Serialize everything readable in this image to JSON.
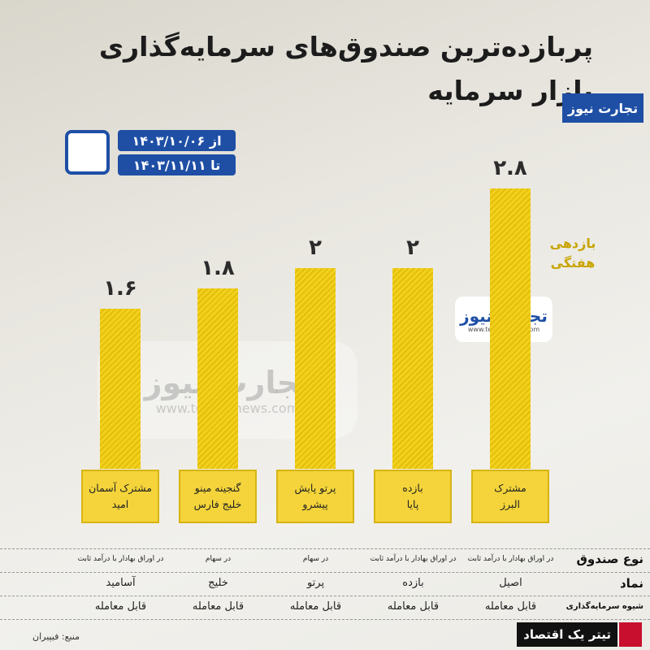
{
  "chart_data": {
    "type": "bar",
    "title": "پربازده‌ترین صندوق‌های سرمایه‌گذاری",
    "subtitle": "بازار سرمایه",
    "brand": "تجارت نیوز",
    "date_from": "از ۱۴۰۳/۱۰/۰۶",
    "date_to": "تا ۱۴۰۳/۱۱/۱۱",
    "y_label": "بازدهی\nهفتگی",
    "watermark_url": "www.tejaratnews.com",
    "categories": [
      "مشترک آسمان\nامید",
      "گنجینه مینو\nخلیج فارس",
      "پرتو پایش\nپیشرو",
      "بازده\nپایا",
      "مشترک\nالبرز"
    ],
    "values": [
      1.6,
      1.8,
      2,
      2,
      2.8
    ],
    "value_labels": [
      "۱.۶",
      "۱.۸",
      "۲",
      "۲",
      "۲.۸"
    ],
    "color": "#f2d11c",
    "ylim": [
      0,
      3
    ]
  },
  "table": {
    "row_headers": [
      "نوع صندوق",
      "نماد",
      "شیوه سرمایه‌گذاری"
    ],
    "rows": [
      [
        "در اوراق بهادار با درآمد ثابت",
        "در سهام",
        "در سهام",
        "در اوراق بهادار با درآمد ثابت",
        "در اوراق بهادار با درآمد ثابت"
      ],
      [
        "آسامید",
        "خلیج",
        "پرتو",
        "بازده",
        "اصیل"
      ],
      [
        "قابل معامله",
        "قابل معامله",
        "قابل معامله",
        "قابل معامله",
        "قابل معامله"
      ]
    ]
  },
  "footer": {
    "source": "منبع: فیپیران",
    "slogan": "تیتر یک اقتصاد"
  }
}
